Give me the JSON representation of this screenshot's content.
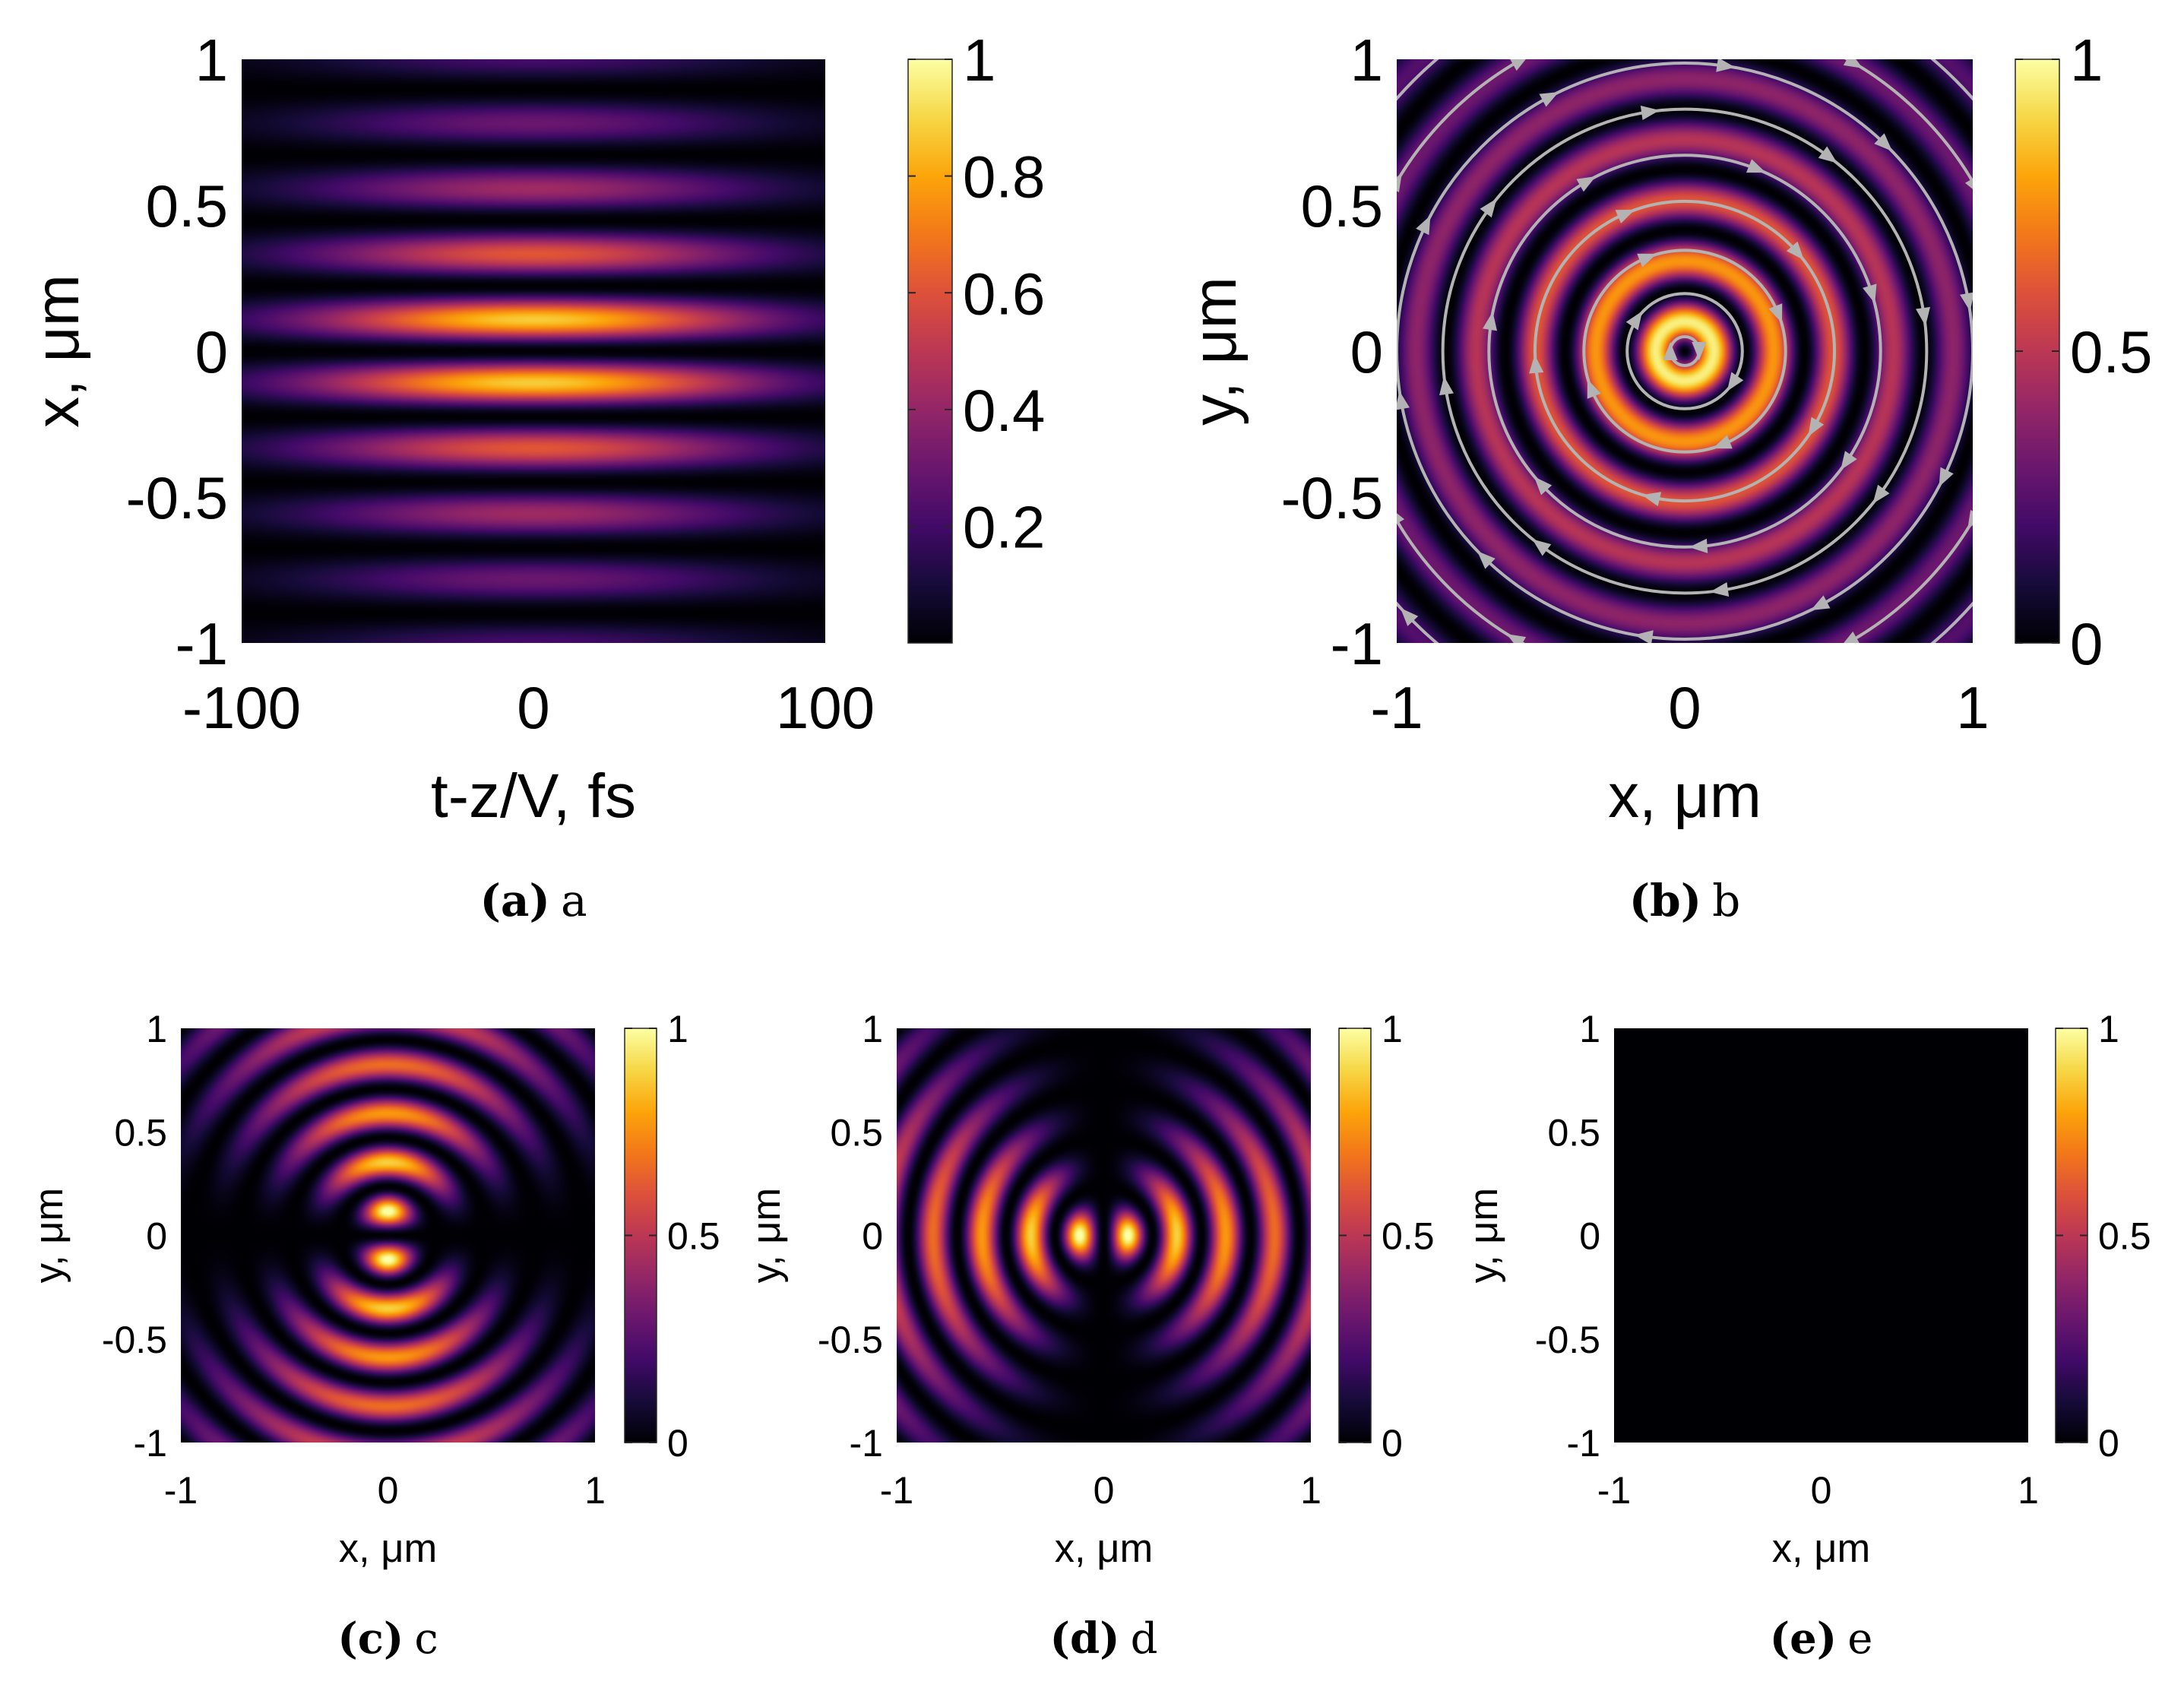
{
  "figure": {
    "colormap": "inferno",
    "panels": [
      {
        "id": "a",
        "caption_label": "(a)",
        "caption_text": "a",
        "xlabel": "t-z/V, fs",
        "ylabel": "x, μm",
        "xticks": [
          "-100",
          "0",
          "100"
        ],
        "yticks": [
          "1",
          "0.5",
          "0",
          "-0.5",
          "-1"
        ],
        "cbar_ticks": [
          "1",
          "0.8",
          "0.6",
          "0.4",
          "0.2"
        ]
      },
      {
        "id": "b",
        "caption_label": "(b)",
        "caption_text": "b",
        "xlabel": "x, μm",
        "ylabel": "y, μm",
        "xticks": [
          "-1",
          "0",
          "1"
        ],
        "yticks": [
          "1",
          "0.5",
          "0",
          "-0.5",
          "-1"
        ],
        "cbar_ticks": [
          "1",
          "0.5",
          "0"
        ]
      },
      {
        "id": "c",
        "caption_label": "(c)",
        "caption_text": "c",
        "xlabel": "x, μm",
        "ylabel": "y, μm",
        "xticks": [
          "-1",
          "0",
          "1"
        ],
        "yticks": [
          "1",
          "0.5",
          "0",
          "-0.5",
          "-1"
        ],
        "cbar_ticks": [
          "1",
          "0.5",
          "0"
        ]
      },
      {
        "id": "d",
        "caption_label": "(d)",
        "caption_text": "d",
        "xlabel": "x, μm",
        "ylabel": "y, μm",
        "xticks": [
          "-1",
          "0",
          "1"
        ],
        "yticks": [
          "1",
          "0.5",
          "0",
          "-0.5",
          "-1"
        ],
        "cbar_ticks": [
          "1",
          "0.5",
          "0"
        ]
      },
      {
        "id": "e",
        "caption_label": "(e)",
        "caption_text": "e",
        "xlabel": "x, μm",
        "ylabel": "y, μm",
        "xticks": [
          "-1",
          "0",
          "1"
        ],
        "yticks": [
          "1",
          "0.5",
          "0",
          "-0.5",
          "-1"
        ],
        "cbar_ticks": [
          "1",
          "0.5",
          "0"
        ]
      }
    ]
  },
  "chart_data": [
    {
      "type": "heatmap",
      "panel": "a",
      "x": {
        "label": "t-z/V, fs",
        "range": [
          -100,
          100
        ]
      },
      "y": {
        "label": "x, μm",
        "range": [
          -1,
          1
        ]
      },
      "z": {
        "range": [
          0,
          1
        ],
        "colorbar_ticks": [
          0.2,
          0.4,
          0.6,
          0.8,
          1
        ]
      },
      "pattern": "horizontal fringes of intensity, zero on the line x=0, two brightest lobes near x=±0.1, Gaussian envelope in t",
      "colormap": "inferno"
    },
    {
      "type": "heatmap",
      "panel": "b",
      "x": {
        "label": "x, μm",
        "range": [
          -1,
          1
        ]
      },
      "y": {
        "label": "y, μm",
        "range": [
          -1,
          1
        ]
      },
      "z": {
        "range": [
          0,
          1
        ],
        "colorbar_ticks": [
          0,
          0.5,
          1
        ]
      },
      "pattern": "concentric rings, dark spot at centre, brightest ring near r≈0.05, grey circular streamlines with arrows",
      "colormap": "inferno"
    },
    {
      "type": "heatmap",
      "panel": "c",
      "x": {
        "label": "x, μm",
        "range": [
          -1,
          1
        ]
      },
      "y": {
        "label": "y, μm",
        "range": [
          -1,
          1
        ]
      },
      "z": {
        "range": [
          0,
          1
        ],
        "colorbar_ticks": [
          0,
          0.5,
          1
        ]
      },
      "pattern": "concentric rings modulated by sin², dark horizontal line at y=0, two bright lobes above and below centre",
      "colormap": "inferno"
    },
    {
      "type": "heatmap",
      "panel": "d",
      "x": {
        "label": "x, μm",
        "range": [
          -1,
          1
        ]
      },
      "y": {
        "label": "y, μm",
        "range": [
          -1,
          1
        ]
      },
      "z": {
        "range": [
          0,
          1
        ],
        "colorbar_ticks": [
          0,
          0.5,
          1
        ]
      },
      "pattern": "concentric rings modulated by cos², dark vertical line at x=0, two bright lobes left and right of centre",
      "colormap": "inferno"
    },
    {
      "type": "heatmap",
      "panel": "e",
      "x": {
        "label": "x, μm",
        "range": [
          -1,
          1
        ]
      },
      "y": {
        "label": "y, μm",
        "range": [
          -1,
          1
        ]
      },
      "z": {
        "range": [
          0,
          1
        ],
        "colorbar_ticks": [
          0,
          0.5,
          1
        ]
      },
      "pattern": "uniformly zero (all black)",
      "colormap": "inferno"
    }
  ]
}
